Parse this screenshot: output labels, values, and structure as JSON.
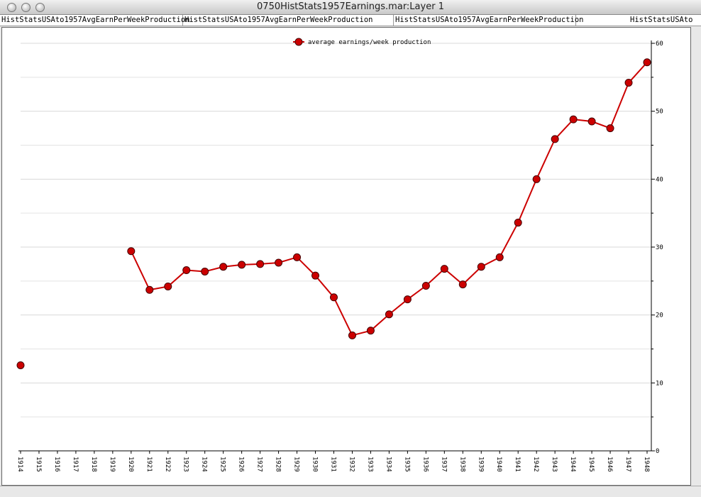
{
  "window": {
    "title": "0750HistStats1957Earnings.mar:Layer 1",
    "tabs": [
      "HistStatsUSAto1957AvgEarnPerWeekProduction",
      "HistStatsUSAto1957AvgEarnPerWeekProduction",
      "HistStatsUSAto1957AvgEarnPerWeekProduction",
      "HistStatsUSAto"
    ]
  },
  "chart_data": {
    "type": "line",
    "categories": [
      "1914",
      "1915",
      "1916",
      "1917",
      "1918",
      "1919",
      "1920",
      "1921",
      "1922",
      "1923",
      "1924",
      "1925",
      "1926",
      "1927",
      "1928",
      "1929",
      "1930",
      "1931",
      "1932",
      "1933",
      "1934",
      "1935",
      "1936",
      "1937",
      "1938",
      "1939",
      "1940",
      "1941",
      "1942",
      "1943",
      "1944",
      "1945",
      "1946",
      "1947",
      "1948"
    ],
    "series": [
      {
        "name": "average earnings/week production",
        "color": "#cc0000",
        "values": [
          12.6,
          null,
          null,
          null,
          null,
          null,
          29.4,
          23.7,
          24.2,
          26.6,
          26.4,
          27.1,
          27.4,
          27.5,
          27.7,
          28.5,
          25.8,
          22.6,
          17.0,
          17.7,
          20.1,
          22.3,
          24.3,
          26.8,
          24.5,
          27.1,
          28.5,
          33.6,
          40.0,
          45.9,
          48.8,
          48.5,
          47.5,
          54.2,
          57.2
        ]
      }
    ],
    "ylim": [
      0,
      60
    ],
    "yticks": [
      0,
      10,
      20,
      30,
      40,
      50,
      60
    ],
    "minor_yticks": [
      5,
      15,
      25,
      35,
      45,
      55
    ],
    "grid": true,
    "y_axis_side": "right",
    "legend": "top"
  }
}
